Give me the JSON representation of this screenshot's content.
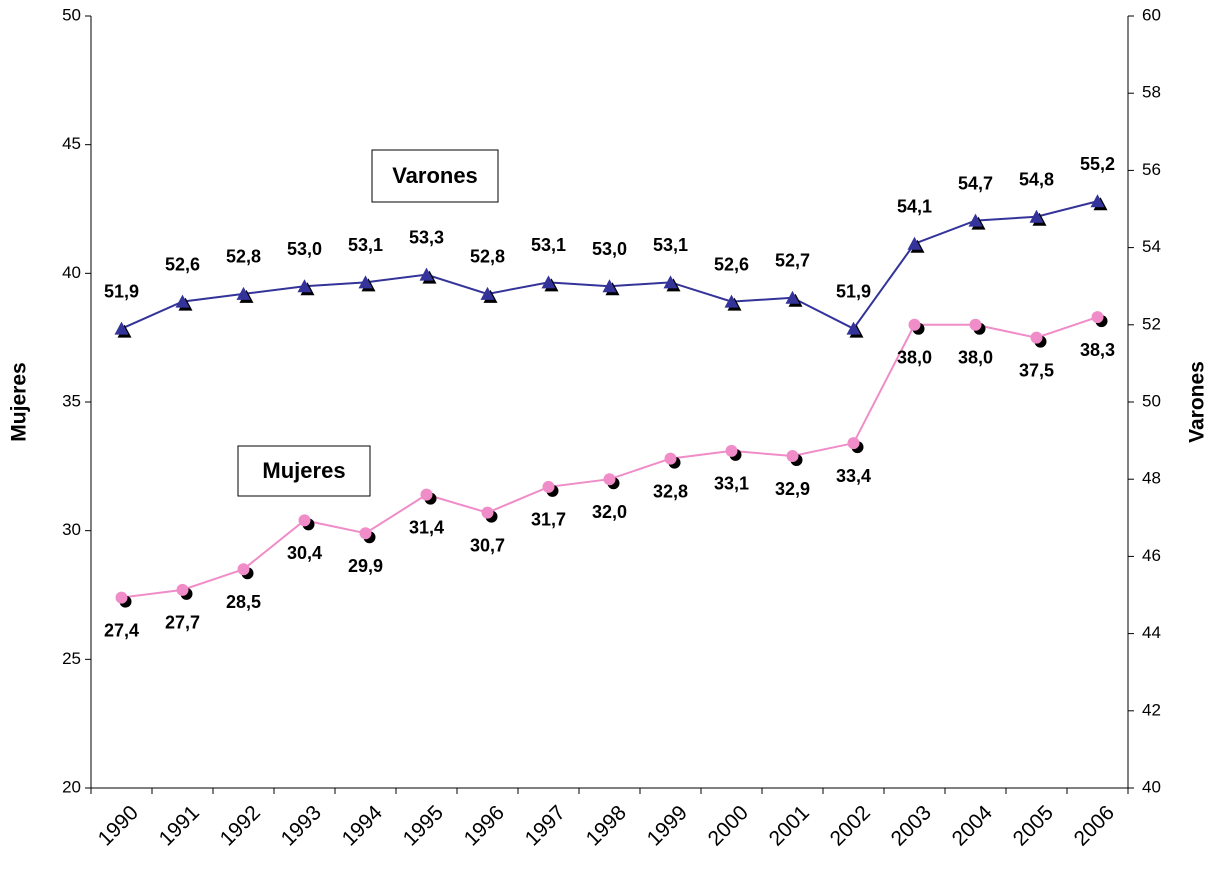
{
  "chart_data": {
    "type": "line",
    "categories": [
      "1990",
      "1991",
      "1992",
      "1993",
      "1994",
      "1995",
      "1996",
      "1997",
      "1998",
      "1999",
      "2000",
      "2001",
      "2002",
      "2003",
      "2004",
      "2005",
      "2006"
    ],
    "y_label": "Mujeres",
    "y2_label": "Varones",
    "ylim": [
      20,
      50
    ],
    "yticks": [
      20,
      25,
      30,
      35,
      40,
      45,
      50
    ],
    "y2lim": [
      40,
      60
    ],
    "y2ticks": [
      40,
      42,
      44,
      46,
      48,
      50,
      52,
      54,
      56,
      58,
      60
    ],
    "annotations": [
      "Varones",
      "Mujeres"
    ],
    "series": [
      {
        "name": "Varones",
        "color": "#333399",
        "axis": "y2",
        "marker": "triangle",
        "values": [
          51.9,
          52.6,
          52.8,
          53.0,
          53.1,
          53.3,
          52.8,
          53.1,
          53.0,
          53.1,
          52.6,
          52.7,
          51.9,
          54.1,
          54.7,
          54.8,
          55.2
        ],
        "value_labels": [
          "51,9",
          "52,6",
          "52,8",
          "53,0",
          "53,1",
          "53,3",
          "52,8",
          "53,1",
          "53,0",
          "53,1",
          "52,6",
          "52,7",
          "51,9",
          "54,1",
          "54,7",
          "54,8",
          "55,2"
        ]
      },
      {
        "name": "Mujeres",
        "color": "#f08cc8",
        "axis": "y",
        "marker": "circle",
        "values": [
          27.4,
          27.7,
          28.5,
          30.4,
          29.9,
          31.4,
          30.7,
          31.7,
          32.0,
          32.8,
          33.1,
          32.9,
          33.4,
          38.0,
          38.0,
          37.5,
          38.3
        ],
        "value_labels": [
          "27,4",
          "27,7",
          "28,5",
          "30,4",
          "29,9",
          "31,4",
          "30,7",
          "31,7",
          "32,0",
          "32,8",
          "33,1",
          "32,9",
          "33,4",
          "38,0",
          "38,0",
          "37,5",
          "38,3"
        ]
      }
    ]
  }
}
